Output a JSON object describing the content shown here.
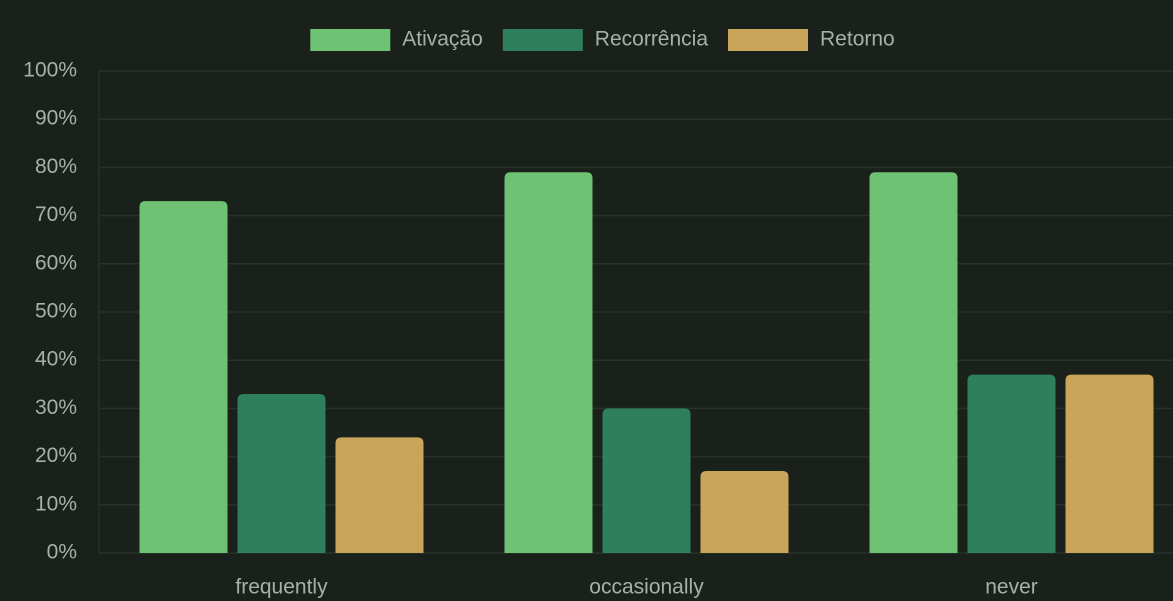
{
  "chart_data": {
    "type": "bar",
    "categories": [
      "frequently",
      "occasionally",
      "never"
    ],
    "series": [
      {
        "name": "Ativação",
        "color": "#6fc274",
        "values": [
          73,
          79,
          79
        ]
      },
      {
        "name": "Recorrência",
        "color": "#2e7f5b",
        "values": [
          33,
          30,
          37
        ]
      },
      {
        "name": "Retorno",
        "color": "#c9a55a",
        "values": [
          24,
          17,
          37
        ]
      }
    ],
    "ylim": [
      0,
      100
    ],
    "yticks": [
      {
        "value": 0,
        "label": "0%"
      },
      {
        "value": 10,
        "label": "10%"
      },
      {
        "value": 20,
        "label": "20%"
      },
      {
        "value": 30,
        "label": "30%"
      },
      {
        "value": 40,
        "label": "40%"
      },
      {
        "value": 50,
        "label": "50%"
      },
      {
        "value": 60,
        "label": "60%"
      },
      {
        "value": 70,
        "label": "70%"
      },
      {
        "value": 80,
        "label": "80%"
      },
      {
        "value": 90,
        "label": "90%"
      },
      {
        "value": 100,
        "label": "100%"
      }
    ],
    "grid": true,
    "legend": "top"
  }
}
